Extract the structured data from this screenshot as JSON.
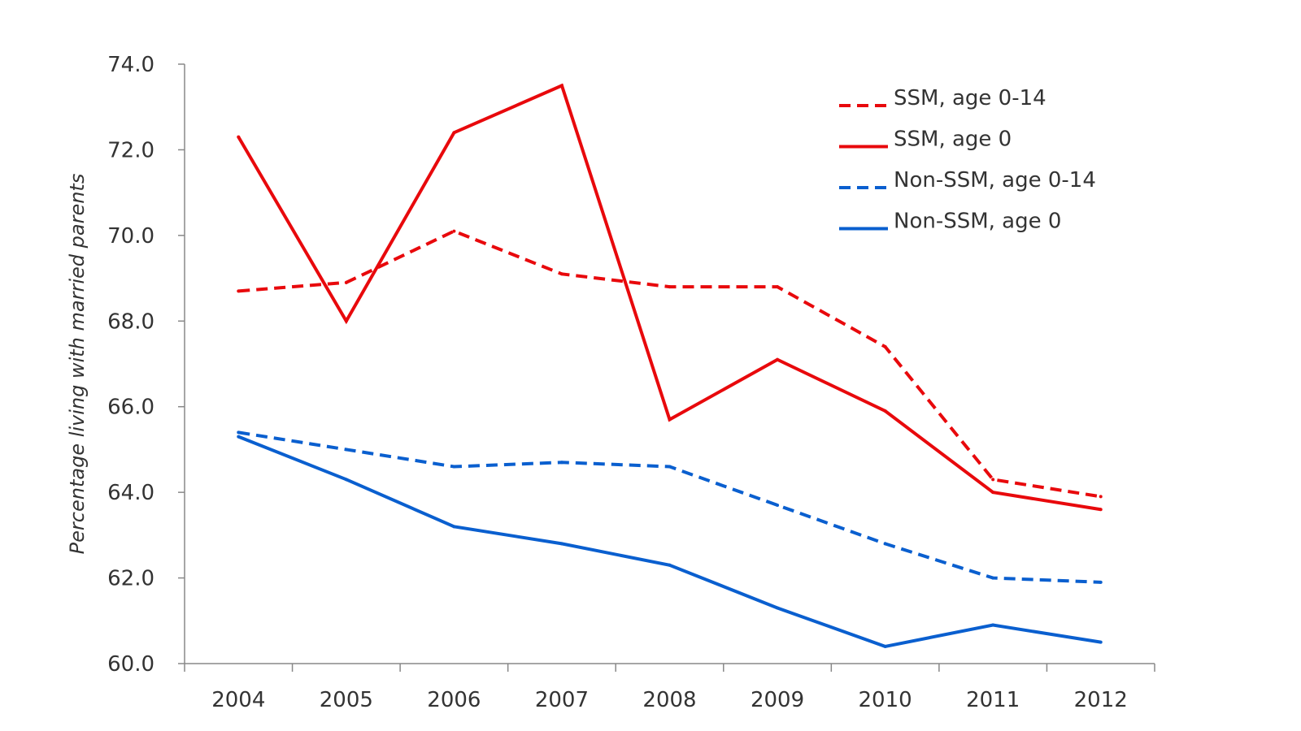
{
  "chart_data": {
    "type": "line",
    "title": "",
    "xlabel": "",
    "ylabel": "Percentage living with married parents",
    "categories": [
      "2004",
      "2005",
      "2006",
      "2007",
      "2008",
      "2009",
      "2010",
      "2011",
      "2012"
    ],
    "ylim": [
      60.0,
      74.0
    ],
    "yticks": [
      "60.0",
      "62.0",
      "64.0",
      "66.0",
      "68.0",
      "70.0",
      "72.0",
      "74.0"
    ],
    "grid": false,
    "legend_position": "top-right",
    "series": [
      {
        "name": "SSM, age 0-14",
        "color": "#e8090c",
        "dash": true,
        "values": [
          68.7,
          68.9,
          70.1,
          69.1,
          68.8,
          68.8,
          67.4,
          64.3,
          63.9
        ]
      },
      {
        "name": "SSM, age 0",
        "color": "#e8090c",
        "dash": false,
        "values": [
          72.3,
          68.0,
          72.4,
          73.5,
          65.7,
          67.1,
          65.9,
          64.0,
          63.6
        ]
      },
      {
        "name": "Non-SSM, age 0-14",
        "color": "#0a5fcf",
        "dash": true,
        "values": [
          65.4,
          65.0,
          64.6,
          64.7,
          64.6,
          63.7,
          62.8,
          62.0,
          61.9
        ]
      },
      {
        "name": "Non-SSM, age 0",
        "color": "#0a5fcf",
        "dash": false,
        "values": [
          65.3,
          64.3,
          63.2,
          62.8,
          62.3,
          61.3,
          60.4,
          60.9,
          60.5
        ]
      }
    ]
  }
}
